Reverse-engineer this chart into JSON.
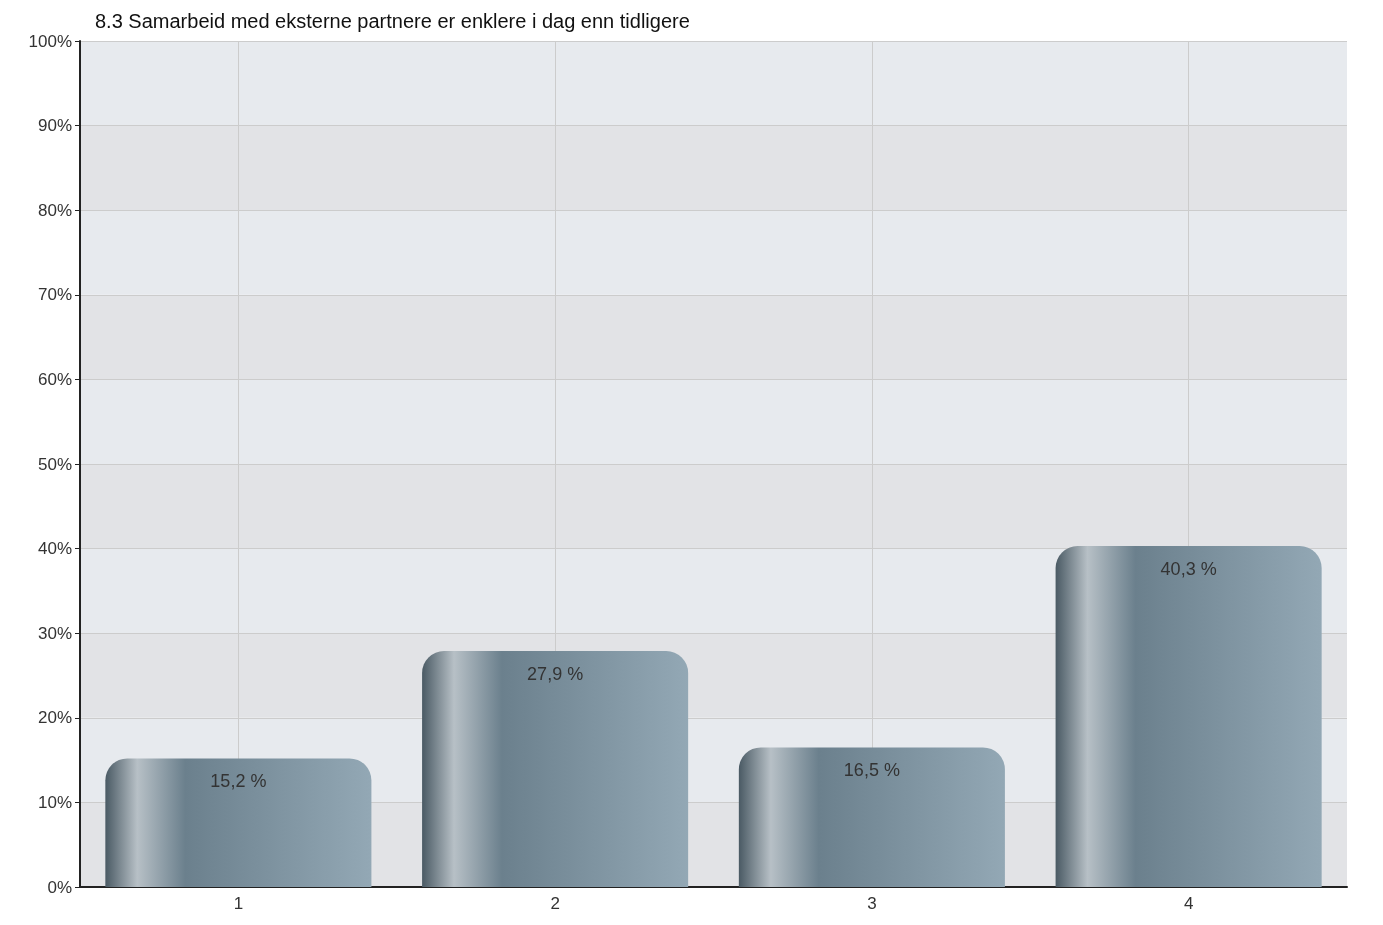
{
  "chart_data": {
    "type": "bar",
    "title": "8.3 Samarbeid med eksterne partnere er enklere i dag enn tidligere",
    "categories": [
      "1",
      "2",
      "3",
      "4"
    ],
    "values": [
      15.2,
      27.9,
      16.5,
      40.3
    ],
    "value_labels": [
      "15,2 %",
      "27,9 %",
      "16,5 %",
      "40,3 %"
    ],
    "color": "#6b808d",
    "ylim": [
      0,
      100
    ],
    "yticks": [
      {
        "value": 0,
        "label": "0%"
      },
      {
        "value": 10,
        "label": "10%"
      },
      {
        "value": 20,
        "label": "20%"
      },
      {
        "value": 30,
        "label": "30%"
      },
      {
        "value": 40,
        "label": "40%"
      },
      {
        "value": 50,
        "label": "50%"
      },
      {
        "value": 60,
        "label": "60%"
      },
      {
        "value": 70,
        "label": "70%"
      },
      {
        "value": 80,
        "label": "80%"
      },
      {
        "value": 90,
        "label": "90%"
      },
      {
        "value": 100,
        "label": "100%"
      }
    ],
    "grid": true
  }
}
